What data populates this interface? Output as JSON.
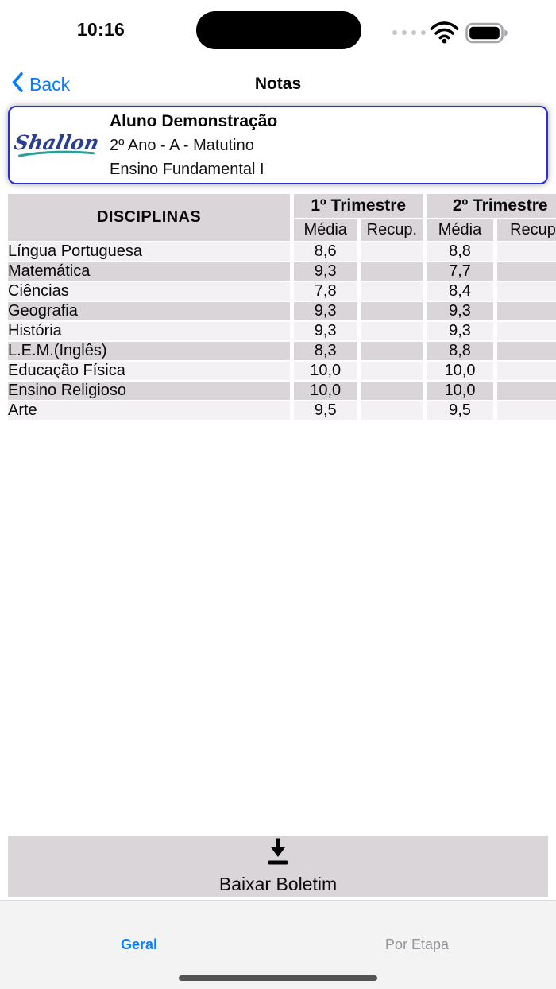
{
  "status_bar": {
    "time": "10:16",
    "icons": {
      "cellular": "cellular-signal-dots",
      "wifi": "wifi",
      "battery": "battery-full"
    }
  },
  "nav": {
    "back_label": "Back",
    "title": "Notas"
  },
  "student_card": {
    "logo_text": "Shallon",
    "name": "Aluno Demonstração",
    "class_info": "2º Ano - A - Matutino",
    "level": "Ensino Fundamental I"
  },
  "grades_table": {
    "disciplines_header": "DISCIPLINAS",
    "period_headers": [
      "1º Trimestre",
      "2º Trimestre"
    ],
    "media_header": "Média",
    "recup_header": "Recup.",
    "rows": [
      {
        "discipline": "Língua Portuguesa",
        "t1_media": "8,6",
        "t1_recup": "",
        "t2_media": "8,8",
        "t2_recup": ""
      },
      {
        "discipline": "Matemática",
        "t1_media": "9,3",
        "t1_recup": "",
        "t2_media": "7,7",
        "t2_recup": ""
      },
      {
        "discipline": "Ciências",
        "t1_media": "7,8",
        "t1_recup": "",
        "t2_media": "8,4",
        "t2_recup": ""
      },
      {
        "discipline": "Geografia",
        "t1_media": "9,3",
        "t1_recup": "",
        "t2_media": "9,3",
        "t2_recup": ""
      },
      {
        "discipline": "História",
        "t1_media": "9,3",
        "t1_recup": "",
        "t2_media": "9,3",
        "t2_recup": ""
      },
      {
        "discipline": "L.E.M.(Inglês)",
        "t1_media": "8,3",
        "t1_recup": "",
        "t2_media": "8,8",
        "t2_recup": ""
      },
      {
        "discipline": "Educação Física",
        "t1_media": "10,0",
        "t1_recup": "",
        "t2_media": "10,0",
        "t2_recup": ""
      },
      {
        "discipline": "Ensino Religioso",
        "t1_media": "10,0",
        "t1_recup": "",
        "t2_media": "10,0",
        "t2_recup": ""
      },
      {
        "discipline": "Arte",
        "t1_media": "9,5",
        "t1_recup": "",
        "t2_media": "9,5",
        "t2_recup": ""
      }
    ]
  },
  "download": {
    "label": "Baixar Boletim",
    "icon": "download-icon"
  },
  "tab_bar": {
    "tabs": [
      {
        "label": "Geral",
        "active": true
      },
      {
        "label": "Por Etapa",
        "active": false
      }
    ]
  },
  "colors": {
    "accent_blue": "#0a7aff",
    "card_border": "#2d2fd4",
    "table_gray": "#d9d5d8",
    "table_light": "#f4f1f4",
    "download_bar": "#dad5d8",
    "tab_bar_bg": "#f4f3f4",
    "tab_inactive": "#95959a",
    "logo_blue": "#2a3f94",
    "logo_teal": "#27a09a"
  }
}
